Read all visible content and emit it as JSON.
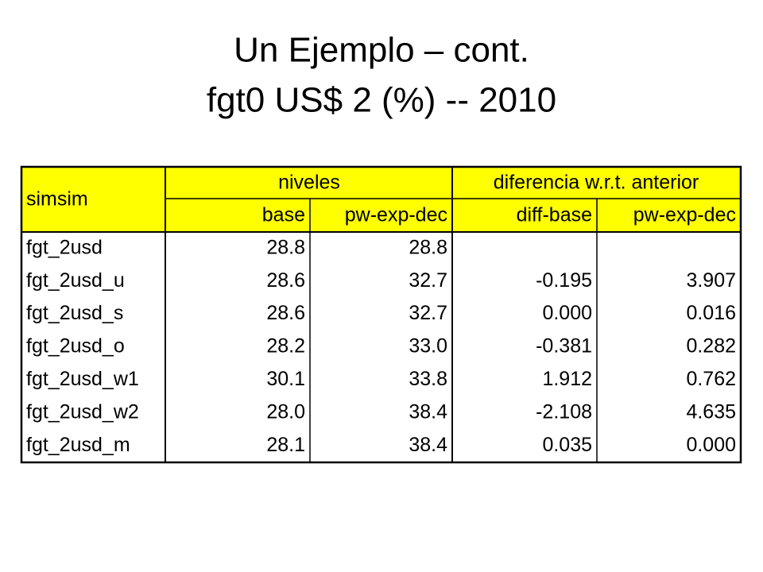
{
  "title": {
    "line1": "Un Ejemplo – cont.",
    "line2": "fgt0 US$ 2 (%) -- 2010"
  },
  "table": {
    "corner": "simsim",
    "groups": [
      "niveles",
      "diferencia w.r.t. anterior"
    ],
    "columns": [
      "base",
      "pw-exp-dec",
      "diff-base",
      "pw-exp-dec"
    ],
    "rows": [
      [
        "fgt_2usd",
        "28.8",
        "28.8",
        null,
        null
      ],
      [
        "fgt_2usd_u",
        "28.6",
        "32.7",
        "-0.195",
        "3.907"
      ],
      [
        "fgt_2usd_s",
        "28.6",
        "32.7",
        "0.000",
        "0.016"
      ],
      [
        "fgt_2usd_o",
        "28.2",
        "33.0",
        "-0.381",
        "0.282"
      ],
      [
        "fgt_2usd_w1",
        "30.1",
        "33.8",
        "1.912",
        "0.762"
      ],
      [
        "fgt_2usd_w2",
        "28.0",
        "38.4",
        "-2.108",
        "4.635"
      ],
      [
        "fgt_2usd_m",
        "28.1",
        "38.4",
        "0.035",
        "0.000"
      ]
    ]
  }
}
